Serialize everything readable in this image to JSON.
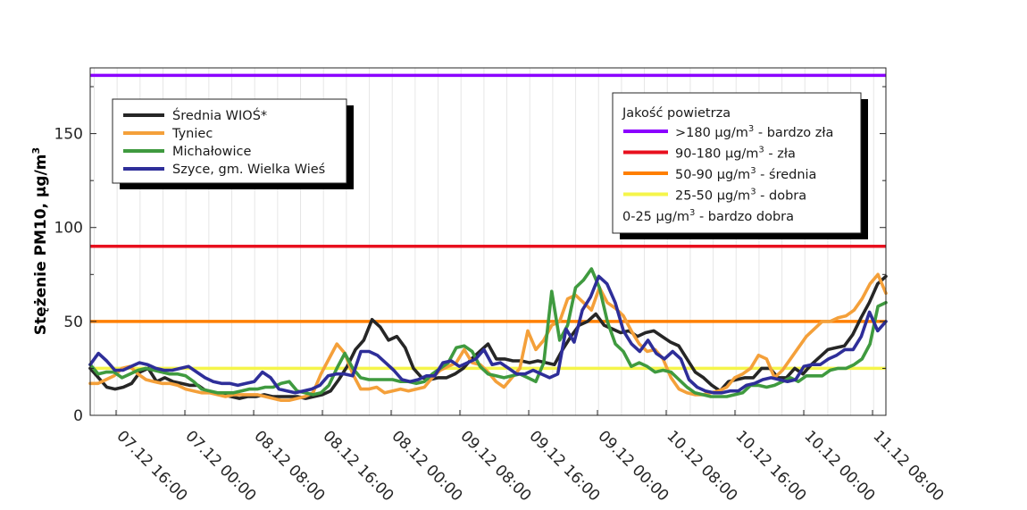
{
  "chart_data": {
    "type": "line",
    "ylabel_main": "Stężenie PM10, µg/m",
    "ylabel_sup": "3",
    "ylim": [
      0,
      185
    ],
    "y_ticks": [
      0,
      50,
      100,
      150
    ],
    "x_tick_labels": [
      "07.12 16:00",
      "07.12 00:00",
      "08.12 08:00",
      "08.12 16:00",
      "08.12 00:00",
      "09.12 08:00",
      "09.12 16:00",
      "09.12 00:00",
      "10.12 08:00",
      "10.12 16:00",
      "10.12 00:00",
      "11.12 08:00"
    ],
    "grid": "vertical-minor",
    "legend_placement": "top-left",
    "thresholds": [
      {
        "value": 181,
        "color": "#8b00ff"
      },
      {
        "value": 90,
        "color": "#e8101e"
      },
      {
        "value": 50,
        "color": "#ff7f00"
      },
      {
        "value": 25,
        "color": "#f5f54a"
      }
    ],
    "series": [
      {
        "name": "Średnia WIOŚ*",
        "color": "#262626",
        "values": [
          25,
          20,
          15,
          14,
          15,
          17,
          23,
          25,
          18,
          20,
          18,
          17,
          16,
          16,
          13,
          12,
          11,
          10,
          9,
          10,
          10,
          11,
          10,
          10,
          10,
          10,
          9,
          10,
          11,
          13,
          19,
          26,
          35,
          40,
          51,
          47,
          40,
          42,
          36,
          25,
          20,
          19,
          20,
          20,
          22,
          25,
          30,
          34,
          38,
          30,
          30,
          29,
          29,
          28,
          29,
          28,
          27,
          35,
          42,
          48,
          50,
          54,
          48,
          46,
          44,
          45,
          42,
          44,
          45,
          42,
          39,
          37,
          30,
          23,
          20,
          16,
          13,
          18,
          19,
          20,
          20,
          25,
          25,
          20,
          20,
          25,
          22,
          27,
          31,
          35,
          36,
          37,
          43,
          52,
          60,
          70,
          74
        ]
      },
      {
        "name": "Tyniec",
        "color": "#f4a03a",
        "values": [
          17,
          17,
          19,
          21,
          25,
          26,
          22,
          19,
          18,
          17,
          17,
          16,
          14,
          13,
          12,
          12,
          11,
          10,
          11,
          11,
          11,
          11,
          10,
          9,
          8,
          8,
          9,
          10,
          12,
          22,
          30,
          38,
          33,
          22,
          14,
          14,
          15,
          12,
          13,
          14,
          13,
          14,
          15,
          20,
          24,
          26,
          28,
          35,
          28,
          27,
          23,
          18,
          15,
          20,
          25,
          45,
          35,
          40,
          48,
          50,
          62,
          64,
          60,
          56,
          68,
          60,
          57,
          53,
          45,
          38,
          34,
          35,
          30,
          20,
          14,
          12,
          11,
          11,
          12,
          13,
          15,
          20,
          22,
          25,
          32,
          30,
          20,
          24,
          30,
          36,
          42,
          46,
          50,
          50,
          52,
          53,
          56,
          62,
          70,
          75,
          65
        ]
      },
      {
        "name": "Michałowice",
        "color": "#3f9a3f",
        "values": [
          27,
          22,
          23,
          23,
          20,
          22,
          24,
          25,
          24,
          23,
          22,
          22,
          21,
          18,
          14,
          13,
          12,
          12,
          12,
          13,
          14,
          14,
          15,
          15,
          17,
          18,
          13,
          12,
          11,
          12,
          16,
          25,
          33,
          25,
          20,
          19,
          19,
          19,
          19,
          18,
          18,
          17,
          18,
          22,
          25,
          28,
          36,
          37,
          34,
          26,
          22,
          21,
          20,
          21,
          22,
          20,
          18,
          28,
          66,
          40,
          48,
          68,
          72,
          78,
          68,
          50,
          38,
          34,
          26,
          28,
          26,
          23,
          24,
          23,
          19,
          15,
          12,
          11,
          10,
          10,
          10,
          11,
          12,
          16,
          16,
          15,
          16,
          18,
          20,
          18,
          21,
          21,
          21,
          24,
          25,
          25,
          27,
          30,
          38,
          58,
          60
        ]
      },
      {
        "name": "Szyce, gm. Wielka Wieś",
        "color": "#2e2e99",
        "values": [
          27,
          33,
          29,
          24,
          24,
          26,
          28,
          27,
          25,
          24,
          24,
          25,
          26,
          23,
          20,
          18,
          17,
          17,
          16,
          17,
          18,
          23,
          20,
          14,
          13,
          12,
          13,
          14,
          16,
          21,
          22,
          22,
          21,
          34,
          34,
          32,
          28,
          24,
          19,
          18,
          19,
          21,
          21,
          28,
          29,
          26,
          28,
          30,
          35,
          27,
          28,
          25,
          22,
          22,
          24,
          22,
          20,
          22,
          46,
          39,
          56,
          63,
          74,
          70,
          60,
          45,
          38,
          34,
          40,
          33,
          30,
          34,
          30,
          19,
          15,
          13,
          12,
          12,
          13,
          13,
          16,
          17,
          19,
          20,
          19,
          18,
          19,
          26,
          27,
          27,
          30,
          32,
          35,
          35,
          42,
          55,
          45,
          50
        ]
      }
    ]
  },
  "legend_series": [
    {
      "label": "Średnia WIOŚ*",
      "color": "#262626"
    },
    {
      "label": "Tyniec",
      "color": "#f4a03a"
    },
    {
      "label": "Michałowice",
      "color": "#3f9a3f"
    },
    {
      "label": "Szyce, gm. Wielka Wieś",
      "color": "#2e2e99"
    }
  ],
  "legend_quality": {
    "title": "Jakość powietrza",
    "items": [
      {
        "color": "#8b00ff",
        "text_a": ">180 µg/m",
        "sup": "3",
        "text_b": " - bardzo zła"
      },
      {
        "color": "#e8101e",
        "text_a": "90-180 µg/m",
        "sup": "3",
        "text_b": " - zła"
      },
      {
        "color": "#ff7f00",
        "text_a": "50-90 µg/m",
        "sup": "3",
        "text_b": " - średnia"
      },
      {
        "color": "#f5f54a",
        "text_a": "25-50 µg/m",
        "sup": "3",
        "text_b": " - dobra"
      },
      {
        "color": "",
        "text_a": "0-25 µg/m",
        "sup": "3",
        "text_b": " - bardzo dobra"
      }
    ]
  }
}
